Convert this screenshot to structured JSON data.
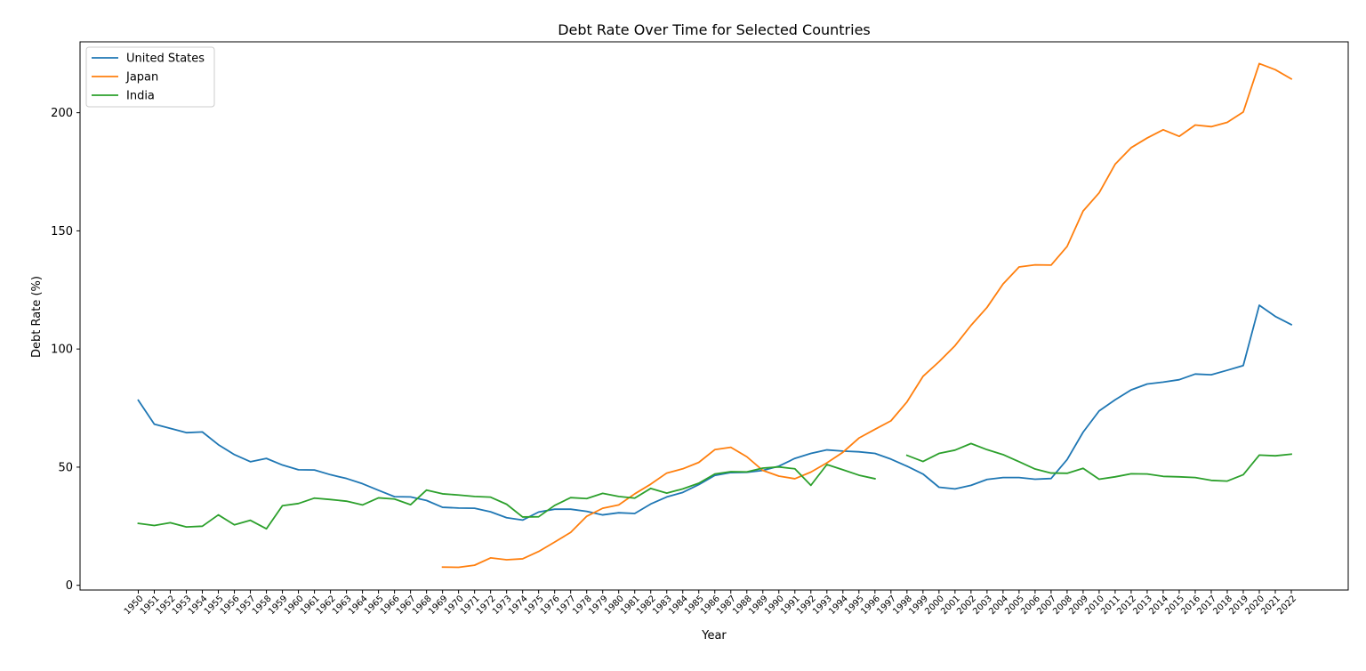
{
  "chart_data": {
    "type": "line",
    "title": "Debt Rate Over Time for Selected Countries",
    "xlabel": "Year",
    "ylabel": "Debt Rate (%)",
    "ylim": [
      -2,
      230
    ],
    "yticks": [
      0,
      50,
      100,
      150,
      200
    ],
    "grid": false,
    "legend_position": "top-left",
    "categories": [
      "1950",
      "1951",
      "1952",
      "1953",
      "1954",
      "1955",
      "1956",
      "1957",
      "1958",
      "1959",
      "1960",
      "1961",
      "1962",
      "1963",
      "1964",
      "1965",
      "1966",
      "1967",
      "1968",
      "1969",
      "1970",
      "1971",
      "1972",
      "1973",
      "1974",
      "1975",
      "1976",
      "1977",
      "1978",
      "1979",
      "1980",
      "1981",
      "1982",
      "1983",
      "1984",
      "1985",
      "1986",
      "1987",
      "1988",
      "1989",
      "1990",
      "1991",
      "1992",
      "1993",
      "1994",
      "1995",
      "1996",
      "1997",
      "1998",
      "1999",
      "2000",
      "2001",
      "2002",
      "2003",
      "2004",
      "2005",
      "2006",
      "2007",
      "2008",
      "2009",
      "2010",
      "2011",
      "2012",
      "2013",
      "2014",
      "2015",
      "2016",
      "2017",
      "2018",
      "2019",
      "2020",
      "2021",
      "2022"
    ],
    "series": [
      {
        "name": "United States",
        "color": "#1f77b4",
        "values": [
          78.3,
          68.2,
          66.4,
          64.6,
          64.9,
          59.5,
          55.3,
          52.3,
          53.7,
          50.9,
          48.9,
          48.8,
          46.8,
          45.2,
          43.0,
          40.2,
          37.5,
          37.4,
          35.9,
          33.0,
          32.7,
          32.6,
          31.1,
          28.6,
          27.6,
          31.0,
          32.2,
          32.2,
          31.3,
          29.8,
          30.7,
          30.4,
          34.4,
          37.4,
          39.3,
          42.6,
          46.5,
          47.7,
          47.8,
          48.6,
          50.4,
          53.7,
          55.8,
          57.3,
          56.8,
          56.5,
          55.8,
          53.4,
          50.4,
          47.1,
          41.5,
          40.8,
          42.3,
          44.8,
          45.6,
          45.6,
          44.9,
          45.2,
          53.2,
          64.8,
          73.8,
          78.5,
          82.7,
          85.2,
          86.0,
          87.0,
          89.4,
          89.1,
          91.0,
          93.0,
          118.5,
          113.8,
          110.3
        ]
      },
      {
        "name": "Japan",
        "color": "#ff7f0e",
        "values": [
          null,
          null,
          null,
          null,
          null,
          null,
          null,
          null,
          null,
          null,
          null,
          null,
          null,
          null,
          null,
          null,
          null,
          null,
          null,
          7.7,
          7.6,
          8.5,
          11.6,
          10.8,
          11.2,
          14.3,
          18.3,
          22.4,
          29.2,
          32.6,
          34.0,
          38.7,
          42.8,
          47.5,
          49.3,
          52.0,
          57.4,
          58.4,
          54.4,
          48.6,
          46.2,
          45.1,
          47.9,
          51.8,
          56.3,
          62.3,
          66.0,
          69.6,
          77.6,
          88.4,
          94.6,
          101.4,
          110.0,
          117.6,
          127.5,
          134.7,
          135.6,
          135.5,
          143.4,
          158.4,
          166.1,
          178.2,
          185.2,
          189.3,
          192.8,
          190.0,
          194.8,
          194.1,
          195.9,
          200.3,
          220.8,
          218.2,
          214.3
        ]
      },
      {
        "name": "India",
        "color": "#2ca02c",
        "values": [
          26.2,
          25.3,
          26.5,
          24.7,
          25.0,
          29.8,
          25.6,
          27.5,
          23.9,
          33.7,
          34.6,
          36.9,
          36.3,
          35.6,
          34.0,
          37.0,
          36.5,
          34.1,
          40.3,
          38.7,
          38.2,
          37.6,
          37.3,
          34.3,
          28.9,
          29.0,
          33.8,
          37.1,
          36.7,
          38.9,
          37.6,
          36.9,
          41.0,
          39.0,
          40.8,
          43.2,
          47.1,
          48.1,
          48.0,
          49.6,
          50.1,
          49.3,
          42.3,
          51.1,
          48.9,
          46.6,
          45.1,
          null,
          55.0,
          52.4,
          55.8,
          57.2,
          60.0,
          57.4,
          55.3,
          52.3,
          49.2,
          47.5,
          47.4,
          49.5,
          44.9,
          45.9,
          47.2,
          47.1,
          46.1,
          45.9,
          45.6,
          44.4,
          44.1,
          46.8,
          55.1,
          54.8,
          55.5
        ]
      }
    ]
  }
}
